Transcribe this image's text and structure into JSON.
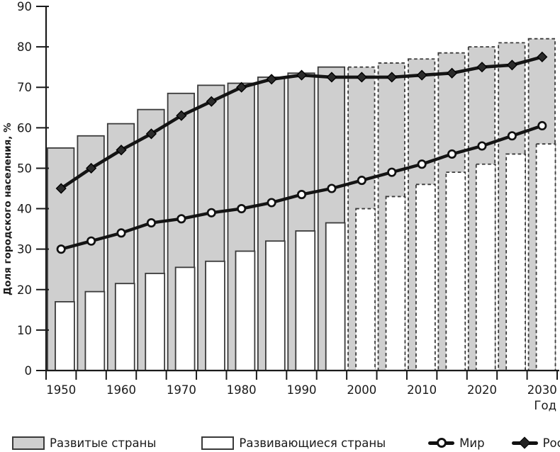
{
  "chart_data": {
    "type": "bar",
    "subtype": "bar-line-combo",
    "years": [
      1950,
      1955,
      1960,
      1965,
      1970,
      1975,
      1980,
      1985,
      1990,
      1995,
      2000,
      2005,
      2010,
      2015,
      2020,
      2025,
      2030
    ],
    "series": [
      {
        "name": "Развитые страны",
        "type": "bar",
        "style": "gray",
        "values": [
          55,
          58,
          61,
          64.5,
          68.5,
          70.5,
          71,
          72.5,
          73.5,
          75,
          75,
          76,
          77,
          78.5,
          80,
          81,
          82
        ]
      },
      {
        "name": "Развивающиеся страны",
        "type": "bar",
        "style": "white",
        "values": [
          17,
          19.5,
          21.5,
          24,
          25.5,
          27,
          29.5,
          32,
          34.5,
          36.5,
          40,
          43,
          46,
          49,
          51,
          53.5,
          56
        ]
      },
      {
        "name": "Мир",
        "type": "line",
        "marker": "circle",
        "values": [
          30,
          32,
          34,
          36.5,
          37.5,
          39,
          40,
          41.5,
          43.5,
          45,
          47,
          49,
          51,
          53.5,
          55.5,
          58,
          60.5
        ]
      },
      {
        "name": "Россия",
        "type": "line",
        "marker": "diamond",
        "values": [
          45,
          50,
          54.5,
          58.5,
          63,
          66.5,
          70,
          72,
          73,
          72.5,
          72.5,
          72.5,
          73,
          73.5,
          75,
          75.5,
          77.5
        ]
      }
    ],
    "projection_from_year": 2000,
    "projection_style": "dashed-outline",
    "title": "",
    "ylabel": "Доля городского населения, %",
    "xlabel": "Год",
    "ylim": [
      0,
      90
    ],
    "ytick_step": 10,
    "xtick_labels": [
      "1950",
      "1960",
      "1970",
      "1980",
      "1990",
      "2000",
      "2010",
      "2020",
      "2030"
    ],
    "grid": "off",
    "legend_position": "bottom",
    "colors": {
      "bar_gray": "#cfcfcf",
      "bar_white": "#ffffff",
      "bar_outline": "#3a3a3a",
      "line": "#141414",
      "axis": "#1a1a1a",
      "diamond_fill": "#2b2b2b",
      "circle_fill": "#ffffff"
    }
  }
}
